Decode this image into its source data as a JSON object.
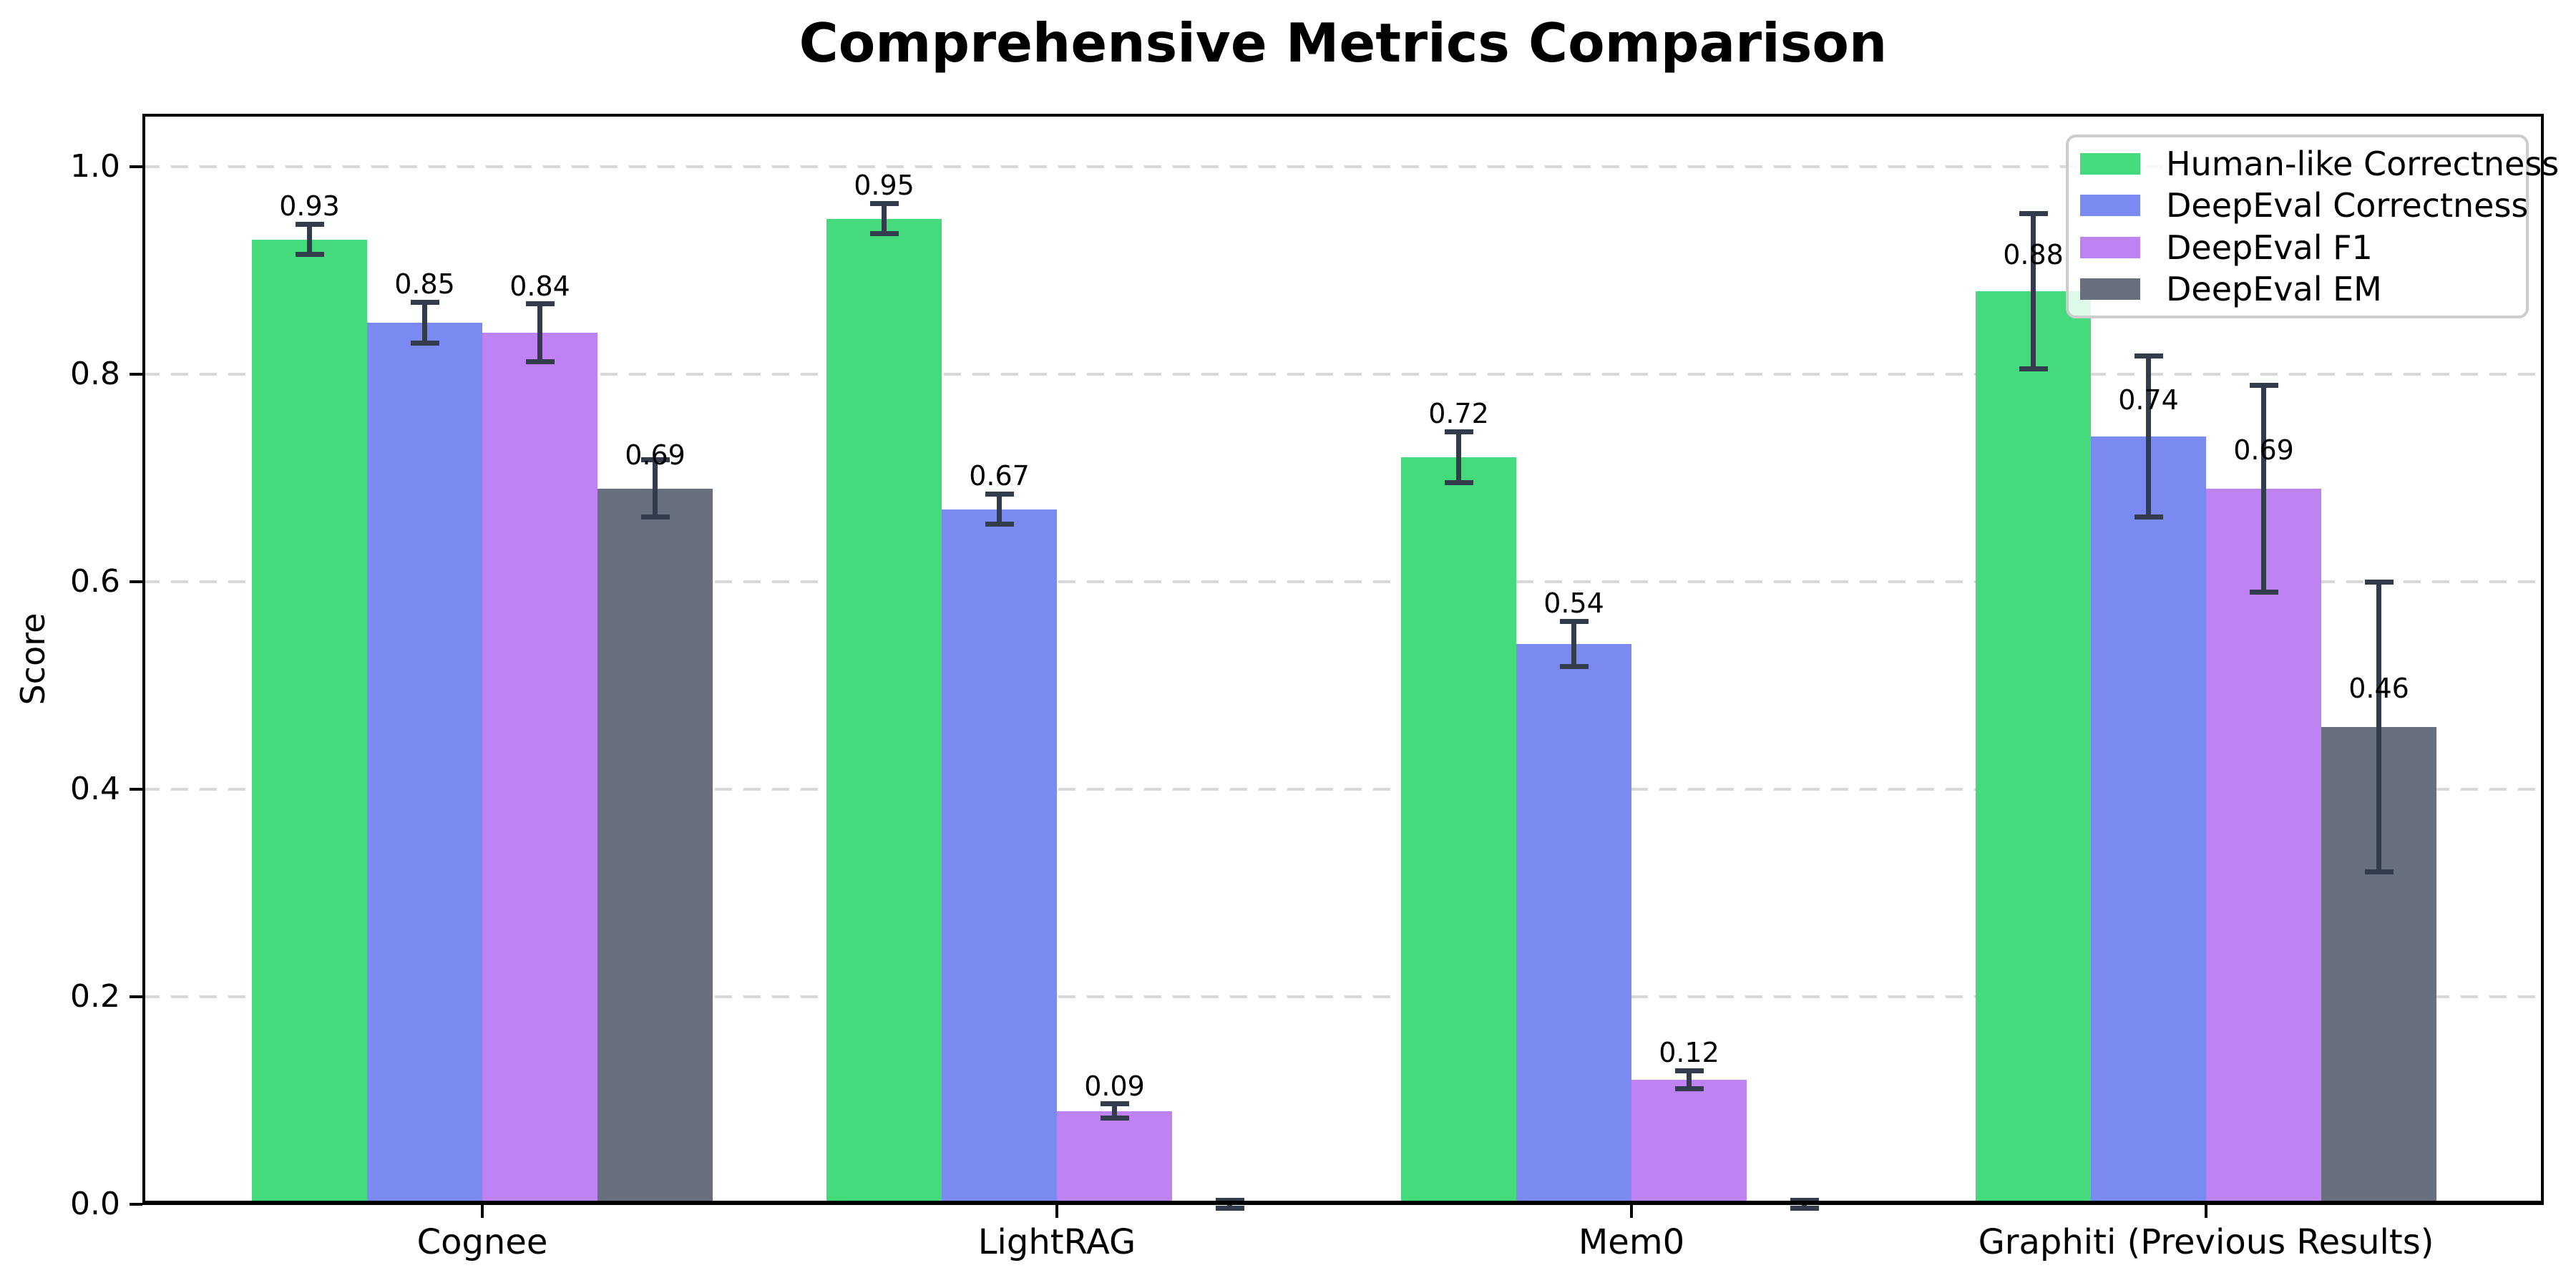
{
  "chart_data": {
    "type": "bar",
    "title": "Comprehensive Metrics Comparison",
    "xlabel": "",
    "ylabel": "Score",
    "categories": [
      "Cognee",
      "LightRAG",
      "Mem0",
      "Graphiti (Previous Results)"
    ],
    "series": [
      {
        "name": "Human-like Correctness",
        "color": "#45da7b",
        "values": [
          0.93,
          0.95,
          0.72,
          0.88
        ],
        "errors": [
          0.015,
          0.015,
          0.025,
          0.075
        ],
        "labels": [
          "0.93",
          "0.95",
          "0.72",
          "0.88"
        ],
        "label_y": [
          0.962,
          0.982,
          0.762,
          0.915
        ]
      },
      {
        "name": "DeepEval Correctness",
        "color": "#7b8af0",
        "values": [
          0.85,
          0.67,
          0.54,
          0.74
        ],
        "errors": [
          0.02,
          0.015,
          0.022,
          0.078
        ],
        "labels": [
          "0.85",
          "0.67",
          "0.54",
          "0.74"
        ],
        "label_y": [
          0.887,
          0.702,
          0.579,
          0.775
        ]
      },
      {
        "name": "DeepEval F1",
        "color": "#bf82f2",
        "values": [
          0.84,
          0.09,
          0.12,
          0.69
        ],
        "errors": [
          0.028,
          0.007,
          0.009,
          0.1
        ],
        "labels": [
          "0.84",
          "0.09",
          "0.12",
          "0.69"
        ],
        "label_y": [
          0.885,
          0.114,
          0.146,
          0.727
        ]
      },
      {
        "name": "DeepEval EM",
        "color": "#68707f",
        "values": [
          0.69,
          0.0,
          0.0,
          0.46
        ],
        "errors": [
          0.028,
          0.004,
          0.004,
          0.14
        ],
        "labels": [
          "0.69",
          "",
          "",
          "0.46"
        ],
        "label_y": [
          0.722,
          0,
          0,
          0.497
        ]
      }
    ],
    "yticks": [
      "0.0",
      "0.2",
      "0.4",
      "0.6",
      "0.8",
      "1.0"
    ],
    "ylim": [
      0,
      1.05
    ],
    "grid": "dashed-horizontal",
    "legend_position": "upper-right",
    "errorbar_color": "#323c4d",
    "grid_color": "#d8d8d8"
  }
}
